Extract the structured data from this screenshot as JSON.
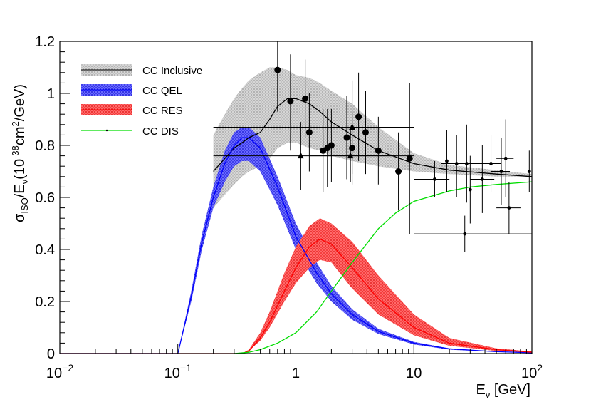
{
  "chart_data": {
    "type": "line",
    "x_scale": "log",
    "xlim": [
      0.01,
      100
    ],
    "ylim": [
      0,
      1.2
    ],
    "xlabel": {
      "main": "E",
      "sub": "ν",
      "rest": " [GeV]"
    },
    "ylabel": {
      "a": "σ",
      "b": "ISO",
      "c": "/E",
      "d": "ν",
      "e": "(10",
      "f": "-38",
      "g": "cm",
      "h": "2",
      "i": "/GeV)"
    },
    "x_ticks": [
      {
        "value": 0.01,
        "base": "10",
        "exp": "−2"
      },
      {
        "value": 0.1,
        "base": "10",
        "exp": "−1"
      },
      {
        "value": 1,
        "base": "1",
        "exp": ""
      },
      {
        "value": 10,
        "base": "10",
        "exp": ""
      },
      {
        "value": 100,
        "base": "10",
        "exp": "2"
      }
    ],
    "y_ticks": [
      {
        "value": 0,
        "label": "0"
      },
      {
        "value": 0.2,
        "label": "0.2"
      },
      {
        "value": 0.4,
        "label": "0.4"
      },
      {
        "value": 0.6,
        "label": "0.6"
      },
      {
        "value": 0.8,
        "label": "0.8"
      },
      {
        "value": 1.0,
        "label": "1"
      },
      {
        "value": 1.2,
        "label": "1.2"
      }
    ],
    "legend": [
      {
        "label": "CC Inclusive",
        "color": "#c8c8c8",
        "kind": "band"
      },
      {
        "label": "CC QEL",
        "color": "#2222ee",
        "kind": "band"
      },
      {
        "label": "CC RES",
        "color": "#ee2222",
        "kind": "band"
      },
      {
        "label": "CC DIS",
        "color": "#22dd22",
        "kind": "line"
      }
    ],
    "series": [
      {
        "name": "CC Inclusive",
        "line_color": "#000000",
        "band_color": "#bdbdbd",
        "x": [
          0.2,
          0.25,
          0.3,
          0.35,
          0.4,
          0.5,
          0.6,
          0.7,
          0.85,
          1.0,
          1.3,
          1.6,
          2.0,
          3.0,
          5.0,
          10,
          20,
          50,
          100
        ],
        "y": [
          0.7,
          0.75,
          0.79,
          0.81,
          0.83,
          0.85,
          0.9,
          0.95,
          0.98,
          0.98,
          0.96,
          0.93,
          0.89,
          0.84,
          0.78,
          0.73,
          0.705,
          0.69,
          0.68
        ],
        "low": [
          0.56,
          0.61,
          0.65,
          0.68,
          0.7,
          0.72,
          0.75,
          0.79,
          0.81,
          0.81,
          0.79,
          0.78,
          0.76,
          0.74,
          0.72,
          0.7,
          0.69,
          0.68,
          0.68
        ],
        "high": [
          0.84,
          0.92,
          0.98,
          1.02,
          1.05,
          1.08,
          1.1,
          1.1,
          1.09,
          1.07,
          1.06,
          1.04,
          1.01,
          0.96,
          0.87,
          0.77,
          0.725,
          0.705,
          0.69
        ]
      },
      {
        "name": "CC QEL",
        "line_color": "#0000ff",
        "band_color": "#3333ee",
        "x": [
          0.01,
          0.1,
          0.13,
          0.16,
          0.2,
          0.25,
          0.3,
          0.35,
          0.4,
          0.5,
          0.7,
          1.0,
          1.5,
          2.0,
          3.0,
          5.0,
          10,
          20,
          50,
          100
        ],
        "y": [
          0,
          0,
          0.22,
          0.43,
          0.6,
          0.73,
          0.8,
          0.83,
          0.83,
          0.79,
          0.64,
          0.45,
          0.31,
          0.23,
          0.15,
          0.085,
          0.04,
          0.018,
          0.007,
          0.003
        ],
        "low": [
          0,
          0,
          0.2,
          0.4,
          0.56,
          0.66,
          0.72,
          0.74,
          0.74,
          0.7,
          0.57,
          0.4,
          0.27,
          0.2,
          0.13,
          0.075,
          0.035,
          0.015,
          0.006,
          0.002
        ],
        "high": [
          0,
          0,
          0.24,
          0.46,
          0.64,
          0.78,
          0.85,
          0.87,
          0.87,
          0.83,
          0.68,
          0.5,
          0.35,
          0.26,
          0.17,
          0.095,
          0.045,
          0.02,
          0.008,
          0.004
        ]
      },
      {
        "name": "CC RES",
        "line_color": "#ff0000",
        "band_color": "#ee3333",
        "x": [
          0.01,
          0.35,
          0.4,
          0.5,
          0.6,
          0.8,
          1.0,
          1.3,
          1.6,
          2.0,
          3.0,
          5.0,
          10,
          20,
          50,
          100
        ],
        "y": [
          0,
          0,
          0.01,
          0.06,
          0.12,
          0.24,
          0.33,
          0.41,
          0.44,
          0.42,
          0.33,
          0.21,
          0.1,
          0.04,
          0.015,
          0.005
        ],
        "low": [
          0,
          0,
          0.01,
          0.05,
          0.1,
          0.2,
          0.27,
          0.33,
          0.36,
          0.35,
          0.25,
          0.15,
          0.07,
          0.03,
          0.01,
          0.004
        ],
        "high": [
          0,
          0,
          0.015,
          0.08,
          0.16,
          0.31,
          0.41,
          0.49,
          0.52,
          0.5,
          0.43,
          0.3,
          0.15,
          0.06,
          0.02,
          0.008
        ]
      },
      {
        "name": "CC DIS",
        "line_color": "#00dd00",
        "x": [
          0.3,
          0.4,
          0.5,
          0.7,
          1.0,
          1.5,
          2.0,
          3.0,
          5.0,
          7.0,
          10,
          20,
          30,
          50,
          100
        ],
        "y": [
          0,
          0.005,
          0.015,
          0.04,
          0.08,
          0.16,
          0.24,
          0.35,
          0.48,
          0.54,
          0.585,
          0.625,
          0.64,
          0.65,
          0.66
        ]
      }
    ],
    "data_points": [
      {
        "x": 0.7,
        "y": 1.09,
        "ylo": 0.93,
        "yhi": 1.22,
        "marker": "circle"
      },
      {
        "x": 0.9,
        "y": 0.97,
        "ylo": 0.78,
        "yhi": 1.15,
        "marker": "circle"
      },
      {
        "x": 1.2,
        "y": 0.98,
        "ylo": 0.83,
        "yhi": 1.13,
        "marker": "circle"
      },
      {
        "x": 1.3,
        "y": 0.85,
        "ylo": 0.7,
        "yhi": 1.0,
        "marker": "circle"
      },
      {
        "x": 1.7,
        "y": 0.78,
        "ylo": 0.62,
        "yhi": 0.94,
        "marker": "circle"
      },
      {
        "x": 1.85,
        "y": 0.79,
        "ylo": 0.64,
        "yhi": 0.94,
        "marker": "circle"
      },
      {
        "x": 2.0,
        "y": 0.8,
        "ylo": 0.66,
        "yhi": 0.94,
        "marker": "circle"
      },
      {
        "x": 2.7,
        "y": 0.83,
        "ylo": 0.67,
        "yhi": 0.99,
        "marker": "circle"
      },
      {
        "x": 3.0,
        "y": 0.79,
        "ylo": 0.65,
        "yhi": 0.93,
        "marker": "circle"
      },
      {
        "x": 3.4,
        "y": 0.91,
        "ylo": 0.74,
        "yhi": 1.08,
        "marker": "circle"
      },
      {
        "x": 3.9,
        "y": 0.85,
        "ylo": 0.69,
        "yhi": 1.01,
        "marker": "circle"
      },
      {
        "x": 5.0,
        "y": 0.78,
        "ylo": 0.65,
        "yhi": 0.91,
        "marker": "circle"
      },
      {
        "x": 7.4,
        "y": 0.7,
        "ylo": 0.55,
        "yhi": 0.85,
        "marker": "circle"
      },
      {
        "x": 9.2,
        "y": 0.75,
        "ylo": 0.46,
        "yhi": 1.04,
        "marker": "circle"
      },
      {
        "x": 1.1,
        "y": 0.76,
        "ylo": 0.63,
        "yhi": 0.89,
        "xlo": 0.2,
        "xhi": 10,
        "marker": "triangle"
      },
      {
        "x": 2.9,
        "y": 0.76,
        "ylo": 0.66,
        "yhi": 0.86,
        "xlo": 1.3,
        "xhi": 7,
        "marker": "triangle"
      },
      {
        "x": 3.0,
        "y": 0.87,
        "ylo": 0.69,
        "yhi": 1.05,
        "xlo": 0.2,
        "xhi": 10,
        "marker": "triangle"
      },
      {
        "x": 19,
        "y": 0.74,
        "ylo": 0.62,
        "yhi": 0.86,
        "marker": "small"
      },
      {
        "x": 23,
        "y": 0.73,
        "ylo": 0.6,
        "yhi": 0.84,
        "xlo": 17,
        "xhi": 30,
        "marker": "small"
      },
      {
        "x": 28,
        "y": 0.73,
        "ylo": 0.58,
        "yhi": 0.88,
        "xlo": 22,
        "xhi": 35,
        "marker": "small"
      },
      {
        "x": 30,
        "y": 0.63,
        "ylo": 0.5,
        "yhi": 0.76,
        "marker": "small"
      },
      {
        "x": 27,
        "y": 0.46,
        "ylo": 0.39,
        "yhi": 0.53,
        "xlo": 10,
        "xhi": 100,
        "marker": "small"
      },
      {
        "x": 38,
        "y": 0.67,
        "ylo": 0.54,
        "yhi": 0.8,
        "xlo": 30,
        "xhi": 48,
        "marker": "small"
      },
      {
        "x": 45,
        "y": 0.73,
        "ylo": 0.62,
        "yhi": 0.84,
        "xlo": 35,
        "xhi": 55,
        "marker": "small"
      },
      {
        "x": 60,
        "y": 0.75,
        "ylo": 0.6,
        "yhi": 0.9,
        "xlo": 50,
        "xhi": 70,
        "marker": "small"
      },
      {
        "x": 64,
        "y": 0.56,
        "ylo": 0.46,
        "yhi": 0.66,
        "xlo": 50,
        "xhi": 80,
        "marker": "small"
      },
      {
        "x": 55,
        "y": 0.7,
        "ylo": 0.57,
        "yhi": 0.83,
        "xlo": 45,
        "xhi": 65,
        "marker": "small"
      },
      {
        "x": 95,
        "y": 0.7,
        "ylo": 0.62,
        "yhi": 0.78,
        "marker": "small"
      },
      {
        "x": 15,
        "y": 0.67,
        "ylo": 0.6,
        "yhi": 0.74,
        "xlo": 10,
        "xhi": 20,
        "marker": "small"
      }
    ]
  }
}
